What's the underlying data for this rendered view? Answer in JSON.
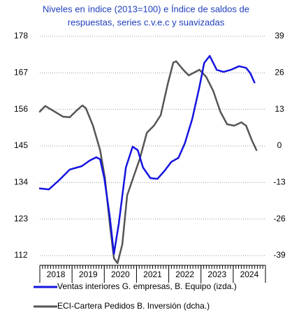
{
  "chart_data": {
    "type": "line",
    "title_lines": [
      "Niveles en índice (2013=100) e Índice de saldos de",
      "respuestas, series c.v.e.c y suavizadas"
    ],
    "categories": [
      "2018",
      "2019",
      "2020",
      "2021",
      "2022",
      "2023",
      "2024"
    ],
    "xlim": [
      2018,
      2025
    ],
    "xticks": [
      2018,
      2019,
      2020,
      2021,
      2022,
      2023,
      2024,
      2025
    ],
    "ylim": [
      112,
      178
    ],
    "yticks": [
      112,
      123,
      134,
      145,
      156,
      167,
      178
    ],
    "y2lim": [
      -39,
      39
    ],
    "y2ticks": [
      -39,
      -26,
      -13,
      0,
      13,
      26,
      39
    ],
    "grid": true,
    "legend": "bottom",
    "series": [
      {
        "name": "Ventas interiores G. empresas, B. Equipo (izda.)",
        "color": "#1414e0",
        "x": [
          2018.0,
          2018.28,
          2018.6,
          2018.93,
          2019.3,
          2019.55,
          2019.75,
          2019.87,
          2020.0,
          2020.17,
          2020.3,
          2020.45,
          2020.67,
          2020.88,
          2021.04,
          2021.2,
          2021.43,
          2021.65,
          2021.86,
          2022.08,
          2022.3,
          2022.5,
          2022.73,
          2022.95,
          2023.1,
          2023.27,
          2023.49,
          2023.7,
          2023.92,
          2024.18,
          2024.4,
          2024.53,
          2024.66
        ],
        "values": [
          132.2,
          131.9,
          134.7,
          137.9,
          138.9,
          140.6,
          141.6,
          141,
          135.3,
          123.8,
          112.5,
          121.7,
          138.5,
          144.8,
          143.7,
          138.5,
          135.3,
          135.1,
          137.4,
          140.2,
          141.4,
          145.8,
          153.2,
          162.7,
          170,
          172.1,
          167.9,
          167.3,
          167.9,
          169,
          168.5,
          166.9,
          164.1
        ]
      },
      {
        "name": "ECI-Cartera Pedidos B. Inversión (dcha.)",
        "color": "#555555",
        "axis": "y2",
        "x": [
          2018.0,
          2018.17,
          2018.39,
          2018.72,
          2018.93,
          2019.15,
          2019.32,
          2019.43,
          2019.65,
          2019.87,
          2020.02,
          2020.17,
          2020.3,
          2020.41,
          2020.56,
          2020.71,
          2020.93,
          2021.1,
          2021.32,
          2021.54,
          2021.75,
          2021.97,
          2022.14,
          2022.23,
          2022.45,
          2022.62,
          2022.95,
          2023.16,
          2023.38,
          2023.6,
          2023.81,
          2024.03,
          2024.25,
          2024.4,
          2024.57,
          2024.72
        ],
        "values": [
          12.2,
          14.2,
          12.7,
          10.4,
          10.2,
          12.7,
          14.4,
          13.4,
          7.2,
          -1.5,
          -11.4,
          -27.6,
          -40,
          -41.7,
          -35,
          -17.6,
          -10.2,
          -4.7,
          4.7,
          7.2,
          10.9,
          22.1,
          29.6,
          30.1,
          27.1,
          25.1,
          27.1,
          24.6,
          19.6,
          12.2,
          7.7,
          7.2,
          8.4,
          7.2,
          2.2,
          -1.5
        ]
      }
    ]
  }
}
